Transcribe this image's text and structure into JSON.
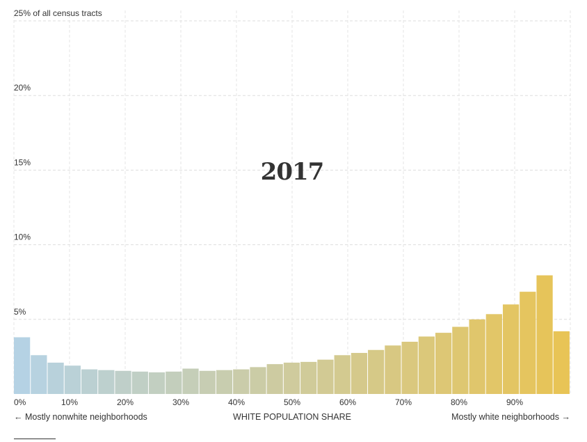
{
  "chart_data": {
    "type": "bar",
    "title": "2017",
    "xlabel": "WHITE POPULATION SHARE",
    "x_left_note": "← Mostly nonwhite neighborhoods",
    "x_right_note": "Mostly white neighborhoods →",
    "y_top_label": "25% of all census tracts",
    "ylim": [
      0,
      25
    ],
    "y_ticks": [
      {
        "value": 5,
        "label": "5%"
      },
      {
        "value": 10,
        "label": "10%"
      },
      {
        "value": 15,
        "label": "15%"
      },
      {
        "value": 20,
        "label": "20%"
      },
      {
        "value": 25,
        "label": "25% of all census tracts"
      }
    ],
    "xlim": [
      0,
      100
    ],
    "x_ticks": [
      {
        "value": 0,
        "label": "0%"
      },
      {
        "value": 10,
        "label": "10%"
      },
      {
        "value": 20,
        "label": "20%"
      },
      {
        "value": 30,
        "label": "30%"
      },
      {
        "value": 40,
        "label": "40%"
      },
      {
        "value": 50,
        "label": "50%"
      },
      {
        "value": 60,
        "label": "60%"
      },
      {
        "value": 70,
        "label": "70%"
      },
      {
        "value": 80,
        "label": "80%"
      },
      {
        "value": 90,
        "label": "90%"
      }
    ],
    "bin_width": 3.03,
    "values": [
      3.8,
      2.6,
      2.1,
      1.9,
      1.65,
      1.6,
      1.55,
      1.5,
      1.45,
      1.5,
      1.7,
      1.55,
      1.6,
      1.65,
      1.8,
      2.0,
      2.1,
      2.15,
      2.3,
      2.6,
      2.75,
      2.95,
      3.25,
      3.5,
      3.85,
      4.1,
      4.5,
      5.0,
      5.35,
      6.0,
      6.85,
      7.95,
      4.2
    ],
    "color_start": "#b5d2e4",
    "color_end": "#e8c456",
    "grid": true
  }
}
